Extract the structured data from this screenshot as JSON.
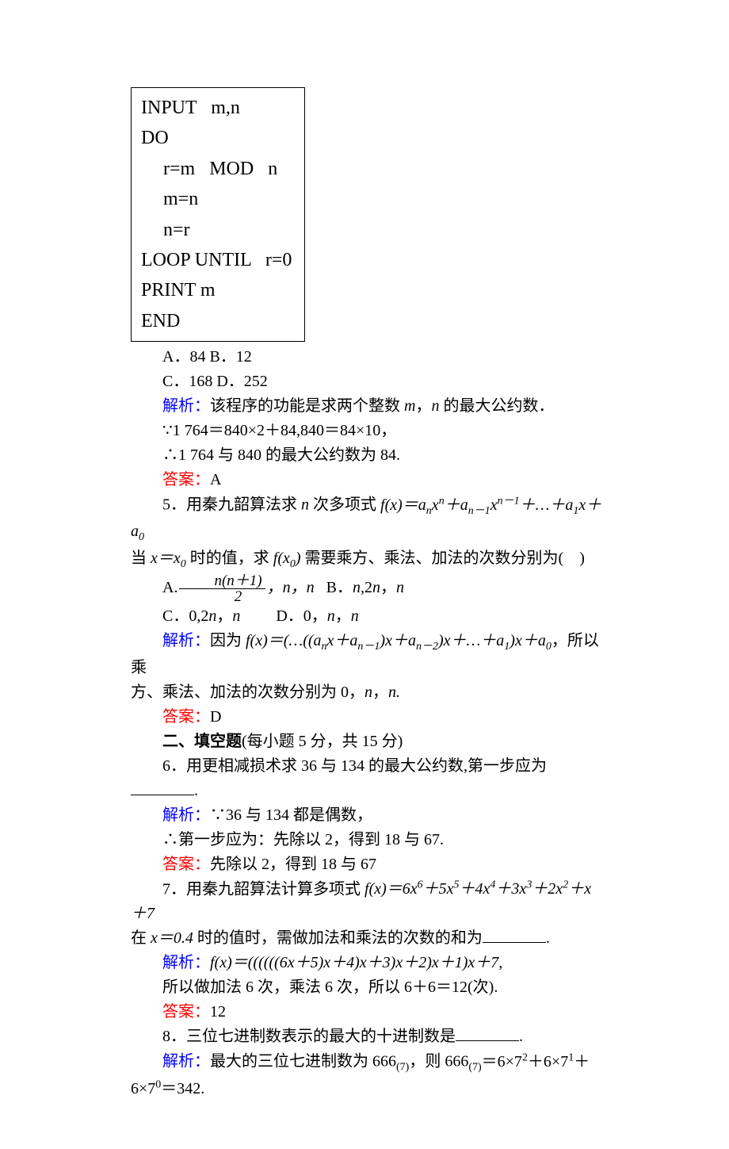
{
  "code": {
    "l1": "INPUT   m,n",
    "l2": "DO",
    "l3": "r=m   MOD   n",
    "l4": "m=n",
    "l5": "n=r",
    "l6": "LOOP UNTIL   r=0",
    "l7": "PRINT m",
    "l8": "END"
  },
  "q4": {
    "opts1": "A．84     B．12",
    "opts2": "C．168   D．252",
    "jiexi_label": "解析：",
    "jiexi_text": "该程序的功能是求两个整数 ",
    "jiexi_text2": "，",
    "jiexi_text3": " 的最大公约数．",
    "m": "m",
    "n": "n",
    "line2": "∵1 764＝840×2＋84,840＝84×10，",
    "line3": "∴1 764 与 840 的最大公约数为 84.",
    "ans_label": "答案：",
    "ans": "A"
  },
  "q5": {
    "stem1": "5．用秦九韶算法求 ",
    "n": "n",
    "stem2": " 次多项式 ",
    "fx": "f",
    "stem_eq": "(x)＝aₙxⁿ＋aₙ₋₁xⁿ⁻¹＋…＋a₁x＋a₀",
    "stem_line2a": "当 ",
    "x": "x",
    "eq": "＝",
    "x0": "x₀",
    "stem_line2b": " 时的值，求 ",
    "fx0": "f(x₀)",
    "stem_line2c": " 需要乘方、乘法、加法的次数分别为(",
    "stem_line2d": ")",
    "optA_pre": "A.",
    "frac_num": "n(n＋1)",
    "frac_den": "2",
    "optA_post": "，n，n   B．n,2n，n",
    "optCD": "C．0,2n，n         D．0，n，n",
    "jiexi_label": "解析：",
    "jiexi1": "因为 ",
    "jiexi_eq": "f(x)＝(…((aₙx＋aₙ₋₁)x＋aₙ₋₂)x＋…＋a₁)x＋a₀",
    "jiexi2": "，所以乘",
    "jiexi_line2": "方、乘法、加法的次数分别为 0，",
    "jiexi_n": "n",
    "jiexi_comma": "，",
    "jiexi_n2": "n.",
    "ans_label": "答案：",
    "ans": "D"
  },
  "section2": "二、填空题",
  "section2_note": "(每小题 5 分，共 15 分)",
  "q6": {
    "stem": "6．用更相减损术求 36 与 134 的最大公约数,第一步应为",
    "stem_end": ".",
    "jiexi_label": "解析：",
    "jiexi1": "∵36 与 134 都是偶数，",
    "jiexi2": "∴第一步应为：先除以 2，得到 18 与 67.",
    "ans_label": "答案：",
    "ans": "先除以 2，得到 18 与 67"
  },
  "q7": {
    "stem1": "7．用秦九韶算法计算多项式 ",
    "eq": "f(x)＝6x⁶＋5x⁵＋4x⁴＋3x³＋2x²＋x＋7",
    "stem2a": "在 ",
    "stem2b": "x＝0.4",
    "stem2c": " 时的值时，需做加法和乘法的次数的和为",
    "stem2d": ".",
    "jiexi_label": "解析：",
    "jiexi_eq": "f(x)＝((((((6x＋5)x＋4)x＋3)x＋2)x＋1)x＋7,",
    "jiexi2": "所以做加法 6 次，乘法 6 次，所以 6＋6＝12(次).",
    "ans_label": "答案：",
    "ans": "12"
  },
  "q8": {
    "stem": "8．三位七进制数表示的最大的十进制数是",
    "stem_end": ".",
    "jiexi_label": "解析：",
    "jiexi1a": "最大的三位七进制数为 666",
    "sub7": "(7)",
    "jiexi1b": "，则 666",
    "jiexi1c": "＝6×7²＋6×7¹＋",
    "jiexi2": "6×7⁰＝342."
  }
}
